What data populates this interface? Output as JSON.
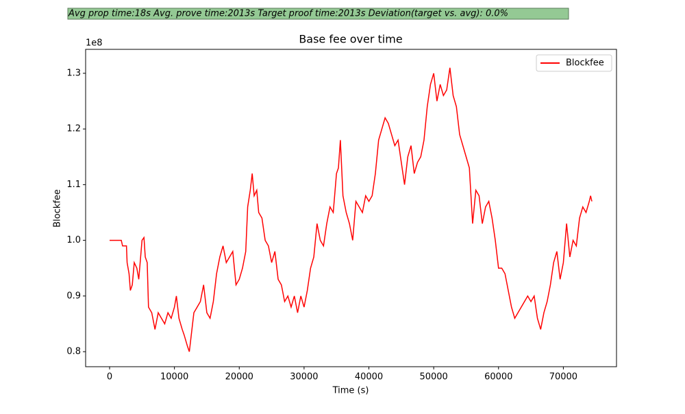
{
  "chart_data": {
    "type": "line",
    "annotation": "Avg prop time:18s    Avg. prove time:2013s    Target proof time:2013s    Deviation(target vs. avg): 0.0%",
    "title": "Base fee over time",
    "x_label": "Time (s)",
    "y_label": "Blockfee",
    "y_offset_label": "1e8",
    "legend": "upper right",
    "xlim": [
      -3700,
      78200
    ],
    "xticks": [
      0,
      10000,
      20000,
      30000,
      40000,
      50000,
      60000,
      70000
    ],
    "ylim": [
      0.773,
      1.343
    ],
    "yticks": [
      0.8,
      0.9,
      {
        "value": 1,
        "label": "1.0"
      },
      1.1,
      1.2,
      1.3
    ],
    "series": [
      {
        "name": "Blockfee",
        "color": "#ff0000",
        "x": [
          0,
          1800,
          2000,
          2600,
          2700,
          3000,
          3200,
          3500,
          3800,
          4200,
          4500,
          5000,
          5300,
          5500,
          5800,
          6000,
          6500,
          7000,
          7500,
          8000,
          8500,
          9000,
          9500,
          10000,
          10300,
          10700,
          11200,
          11500,
          12000,
          12300,
          12600,
          13000,
          13500,
          14000,
          14500,
          15000,
          15500,
          16000,
          16500,
          17000,
          17500,
          18000,
          18500,
          19000,
          19500,
          20000,
          20500,
          21000,
          21300,
          21700,
          22000,
          22300,
          22700,
          23000,
          23500,
          24000,
          24500,
          25000,
          25500,
          26000,
          26500,
          27000,
          27500,
          28000,
          28500,
          29000,
          29500,
          30000,
          30500,
          31000,
          31500,
          32000,
          32500,
          33000,
          33500,
          34000,
          34500,
          35000,
          35300,
          35600,
          36000,
          36500,
          37000,
          37500,
          38000,
          38500,
          39000,
          39500,
          40000,
          40500,
          41000,
          41500,
          42000,
          42500,
          43000,
          43500,
          44000,
          44500,
          45000,
          45500,
          46000,
          46500,
          47000,
          47500,
          48000,
          48500,
          49000,
          49500,
          50000,
          50500,
          51000,
          51500,
          52000,
          52500,
          53000,
          53500,
          54000,
          54500,
          55000,
          55500,
          56000,
          56500,
          57000,
          57500,
          58000,
          58500,
          59000,
          59500,
          60000,
          60500,
          61000,
          61500,
          62000,
          62500,
          63000,
          63500,
          64000,
          64500,
          65000,
          65500,
          66000,
          66500,
          67000,
          67500,
          68000,
          68500,
          69000,
          69500,
          70000,
          70500,
          71000,
          71500,
          72000,
          72500,
          73000,
          73500,
          74000,
          74200,
          74400
        ],
        "values": [
          1.0,
          1.0,
          0.99,
          0.99,
          0.96,
          0.94,
          0.91,
          0.92,
          0.96,
          0.95,
          0.93,
          1.0,
          1.005,
          0.97,
          0.96,
          0.88,
          0.87,
          0.84,
          0.87,
          0.86,
          0.85,
          0.87,
          0.86,
          0.88,
          0.9,
          0.86,
          0.84,
          0.83,
          0.81,
          0.8,
          0.83,
          0.87,
          0.88,
          0.89,
          0.92,
          0.87,
          0.86,
          0.89,
          0.94,
          0.97,
          0.99,
          0.96,
          0.97,
          0.98,
          0.92,
          0.93,
          0.95,
          0.98,
          1.06,
          1.09,
          1.12,
          1.08,
          1.09,
          1.05,
          1.04,
          1.0,
          0.99,
          0.96,
          0.98,
          0.93,
          0.92,
          0.89,
          0.9,
          0.88,
          0.9,
          0.87,
          0.9,
          0.88,
          0.91,
          0.95,
          0.97,
          1.03,
          1.0,
          0.99,
          1.03,
          1.06,
          1.05,
          1.12,
          1.13,
          1.18,
          1.08,
          1.05,
          1.03,
          1.0,
          1.07,
          1.06,
          1.05,
          1.08,
          1.07,
          1.08,
          1.12,
          1.18,
          1.2,
          1.22,
          1.21,
          1.19,
          1.17,
          1.18,
          1.14,
          1.1,
          1.15,
          1.17,
          1.12,
          1.14,
          1.15,
          1.18,
          1.24,
          1.28,
          1.3,
          1.25,
          1.28,
          1.26,
          1.27,
          1.31,
          1.26,
          1.24,
          1.19,
          1.17,
          1.15,
          1.13,
          1.03,
          1.09,
          1.08,
          1.03,
          1.06,
          1.07,
          1.04,
          1.0,
          0.95,
          0.95,
          0.94,
          0.91,
          0.88,
          0.86,
          0.87,
          0.88,
          0.89,
          0.9,
          0.89,
          0.9,
          0.86,
          0.84,
          0.87,
          0.89,
          0.92,
          0.96,
          0.98,
          0.93,
          0.96,
          1.03,
          0.97,
          1.0,
          0.99,
          1.04,
          1.06,
          1.05,
          1.07,
          1.08,
          1.07
        ]
      }
    ]
  }
}
